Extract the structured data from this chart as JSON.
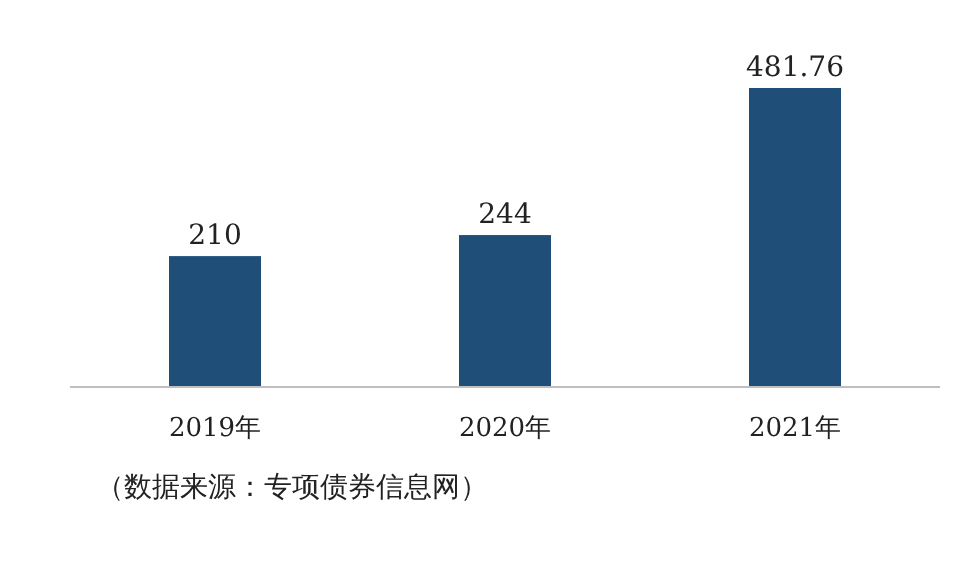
{
  "chart_data": {
    "type": "bar",
    "categories": [
      "2019年",
      "2020年",
      "2021年"
    ],
    "values": [
      210,
      244,
      481.76
    ],
    "color": "#1f4e79",
    "data_labels": true,
    "grid": false,
    "annotations": [
      "（数据来源：专项债券信息网）"
    ]
  }
}
